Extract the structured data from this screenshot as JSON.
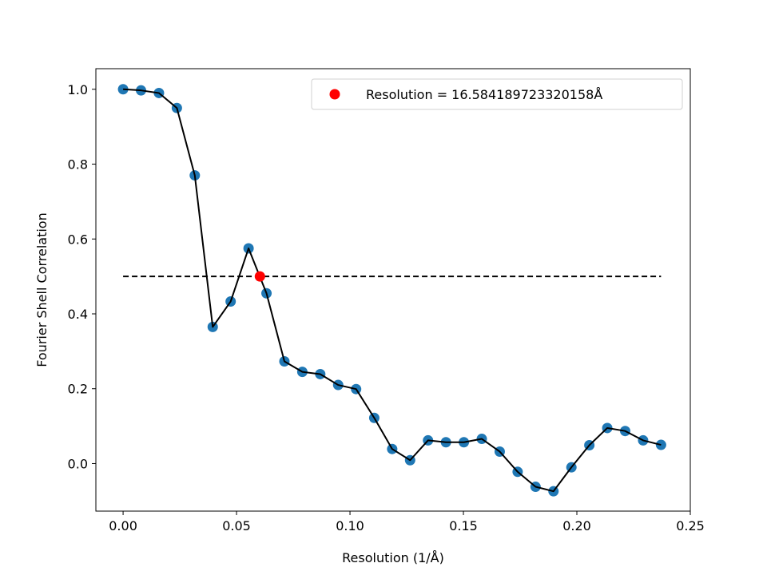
{
  "chart_data": {
    "type": "scatter",
    "xlabel": "Resolution (1/Å)",
    "ylabel": "Fourier Shell Correlation",
    "xlim": [
      -0.012,
      0.25
    ],
    "ylim": [
      -0.127,
      1.055
    ],
    "xticks": [
      0.0,
      0.05,
      0.1,
      0.15,
      0.2,
      0.25
    ],
    "xtick_labels": [
      "0.00",
      "0.05",
      "0.10",
      "0.15",
      "0.20",
      "0.25"
    ],
    "yticks": [
      0.0,
      0.2,
      0.4,
      0.6,
      0.8,
      1.0
    ],
    "ytick_labels": [
      "0.0",
      "0.2",
      "0.4",
      "0.6",
      "0.8",
      "1.0"
    ],
    "grid": false,
    "legend_position": "top-right",
    "series": [
      {
        "kind": "scatter+line",
        "marker_color": "#1f77b4",
        "line_color": "#000000",
        "x": [
          0.0,
          0.0079,
          0.0158,
          0.0237,
          0.0316,
          0.0395,
          0.0474,
          0.0553,
          0.0632,
          0.0711,
          0.079,
          0.0869,
          0.0948,
          0.1027,
          0.1107,
          0.1186,
          0.1265,
          0.1344,
          0.1423,
          0.1502,
          0.1581,
          0.166,
          0.1739,
          0.1818,
          0.1897,
          0.1976,
          0.2055,
          0.2134,
          0.2213,
          0.2292,
          0.2371
        ],
        "y": [
          1.0,
          0.997,
          0.99,
          0.95,
          0.77,
          0.365,
          0.433,
          0.575,
          0.455,
          0.273,
          0.245,
          0.239,
          0.21,
          0.199,
          0.122,
          0.039,
          0.009,
          0.062,
          0.057,
          0.057,
          0.066,
          0.032,
          -0.022,
          -0.062,
          -0.074,
          -0.01,
          0.049,
          0.095,
          0.087,
          0.062,
          0.05
        ]
      },
      {
        "name": "Resolution = 16.584189723320158Å",
        "kind": "point",
        "marker_color": "#ff0000",
        "x": [
          0.0603
        ],
        "y": [
          0.5
        ]
      }
    ],
    "threshold": {
      "kind": "dashed-line",
      "color": "#000000",
      "y": 0.5,
      "x_range": [
        0.0,
        0.2371
      ]
    }
  }
}
